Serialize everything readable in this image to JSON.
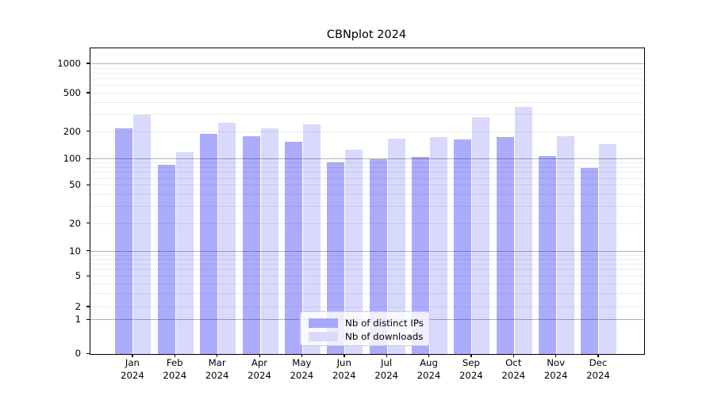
{
  "title": "CBNplot 2024",
  "chart_data": {
    "type": "bar",
    "title": "CBNplot 2024",
    "categories": [
      "Jan 2024",
      "Feb 2024",
      "Mar 2024",
      "Apr 2024",
      "May 2024",
      "Jun 2024",
      "Jul 2024",
      "Aug 2024",
      "Sep 2024",
      "Oct 2024",
      "Nov 2024",
      "Dec 2024"
    ],
    "x_tick_line1": [
      "Jan",
      "Feb",
      "Mar",
      "Apr",
      "May",
      "Jun",
      "Jul",
      "Aug",
      "Sep",
      "Oct",
      "Nov",
      "Dec"
    ],
    "x_tick_line2": [
      "2024",
      "2024",
      "2024",
      "2024",
      "2024",
      "2024",
      "2024",
      "2024",
      "2024",
      "2024",
      "2024",
      "2024"
    ],
    "series": [
      {
        "name": "Nb of distinct IPs",
        "values": [
          218,
          87,
          190,
          178,
          155,
          93,
          100,
          106,
          165,
          177,
          108,
          79
        ],
        "bar_color": "rgba(2,2,245,0.33)",
        "swatch_hex": "#a6a6fa"
      },
      {
        "name": "Nb of downloads",
        "values": [
          300,
          120,
          250,
          220,
          240,
          127,
          170,
          176,
          285,
          360,
          180,
          146
        ],
        "bar_color": "rgba(2,2,245,0.148)",
        "swatch_hex": "#dadafb"
      }
    ],
    "yscale": "symlog",
    "yticks": [
      0,
      1,
      2,
      5,
      10,
      20,
      50,
      100,
      200,
      500,
      1000
    ],
    "ylim": [
      0,
      1470
    ],
    "grid": "horizontal major+minor",
    "legend": {
      "position": "lower center",
      "entries": [
        {
          "label": "Nb of distinct IPs"
        },
        {
          "label": "Nb of downloads"
        }
      ]
    },
    "colors": {
      "ips_bar": "#a6a6fa",
      "downloads_bar": "#dadafb",
      "major_gridline": "#b2b2b2",
      "minor_gridline": "#ececec",
      "axis": "#000000"
    }
  }
}
